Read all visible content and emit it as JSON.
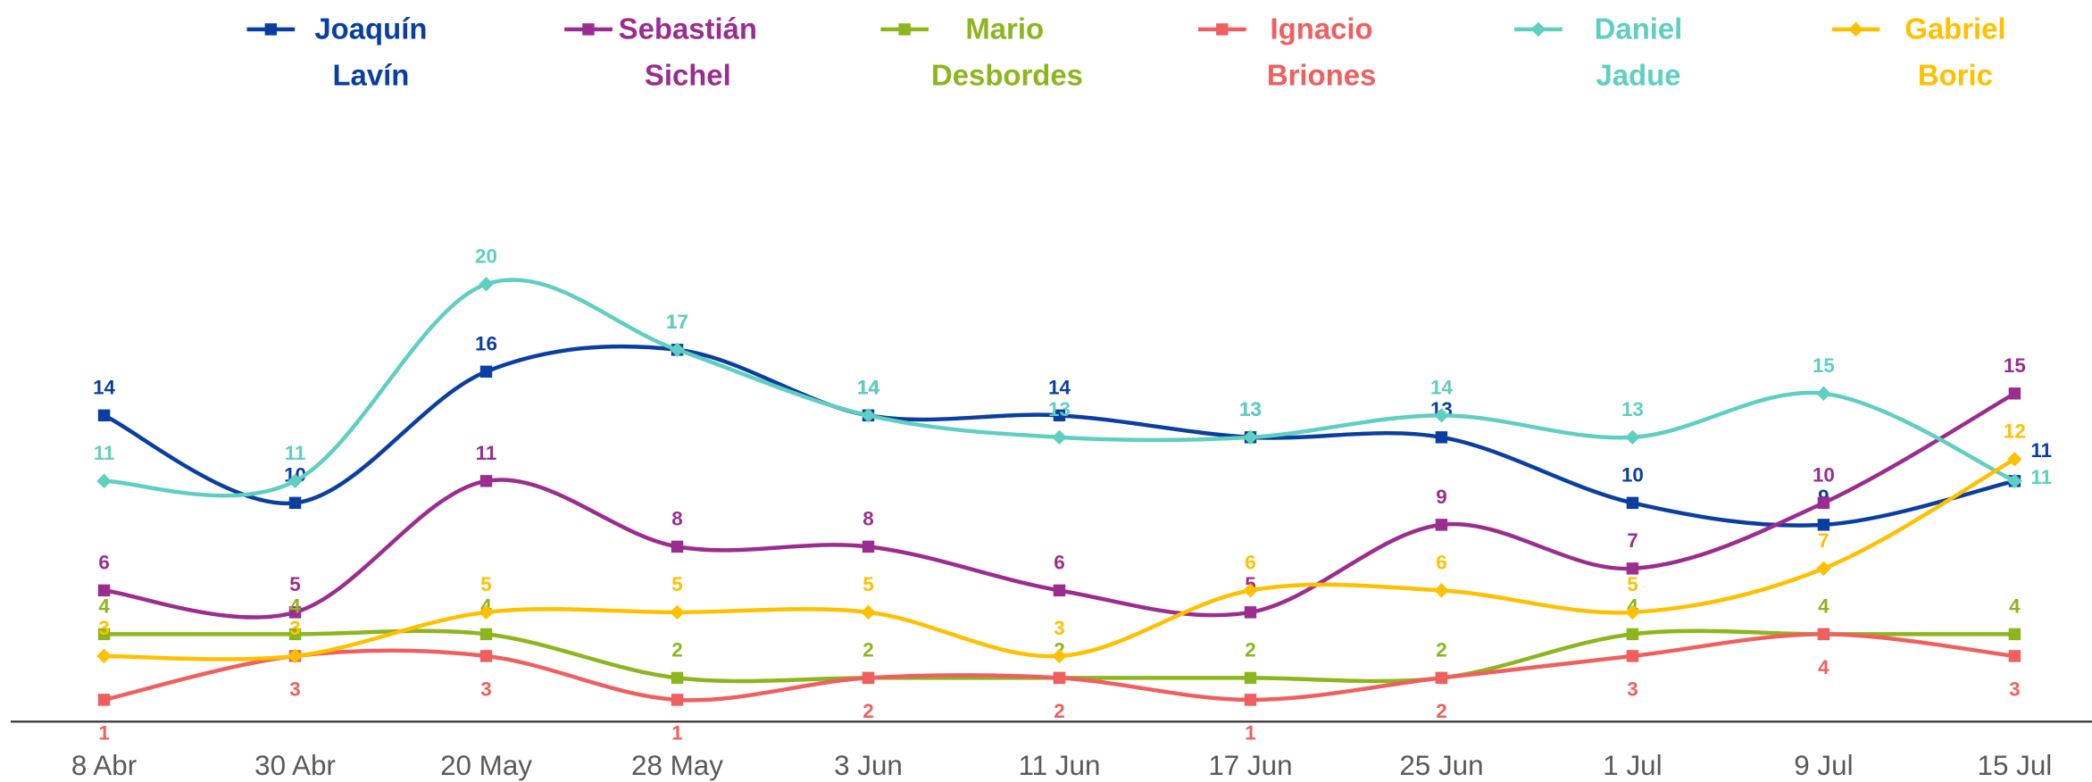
{
  "chart_data": {
    "type": "line",
    "categories": [
      "8 Abr",
      "30 Abr",
      "20 May",
      "28 May",
      "3 Jun",
      "11 Jun",
      "17 Jun",
      "25 Jun",
      "1 Jul",
      "9 Jul",
      "15 Jul"
    ],
    "ylim": [
      0,
      20
    ],
    "legend": "top",
    "series": [
      {
        "name": "Joaquín Lavín",
        "color": "#0a3ea0",
        "marker": "square",
        "values": [
          14,
          10,
          16,
          17,
          14,
          14,
          13,
          13,
          10,
          9,
          11
        ]
      },
      {
        "name": "Sebastián Sichel",
        "color": "#9b2d8f",
        "marker": "square",
        "values": [
          6,
          5,
          11,
          8,
          8,
          6,
          5,
          9,
          7,
          10,
          15
        ]
      },
      {
        "name": "Mario Desbordes",
        "color": "#8db51e",
        "marker": "square",
        "values": [
          4,
          4,
          4,
          2,
          2,
          2,
          2,
          2,
          4,
          4,
          4
        ]
      },
      {
        "name": "Ignacio Briones",
        "color": "#ef5f5f",
        "marker": "square",
        "values": [
          1,
          3,
          3,
          1,
          2,
          2,
          1,
          2,
          3,
          4,
          3
        ]
      },
      {
        "name": "Daniel Jadue",
        "color": "#5ecfc0",
        "marker": "diamond",
        "values": [
          11,
          11,
          20,
          17,
          14,
          13,
          13,
          14,
          13,
          15,
          11
        ]
      },
      {
        "name": "Gabriel Boric",
        "color": "#ffc000",
        "marker": "diamond",
        "values": [
          3,
          3,
          5,
          5,
          5,
          3,
          6,
          6,
          5,
          7,
          12
        ]
      }
    ]
  }
}
